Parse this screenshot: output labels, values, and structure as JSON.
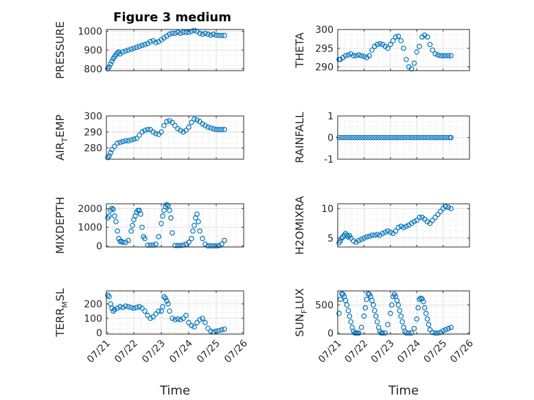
{
  "figure": {
    "title": "Figure 3 medium"
  },
  "colors": {
    "marker": "#0072BD",
    "axis": "#262626",
    "grid": "#c9c9c9"
  },
  "x_tick_labels": [
    "07/21",
    "07/22",
    "07/23",
    "07/24",
    "07/25",
    "07/26"
  ],
  "x_label": "Time",
  "chart_data": [
    {
      "type": "scatter",
      "ylabel": "PRESSURE",
      "yticks": [
        800,
        900,
        1000
      ],
      "ylim": [
        790,
        1010
      ],
      "xlim_days": [
        0,
        5
      ],
      "x_label": "",
      "x_tick_labels_visible": false,
      "grid": true,
      "points_x": [
        0.05,
        0.1,
        0.15,
        0.2,
        0.25,
        0.3,
        0.35,
        0.4,
        0.45,
        0.5,
        0.6,
        0.7,
        0.8,
        0.9,
        1.0,
        1.1,
        1.2,
        1.3,
        1.4,
        1.5,
        1.6,
        1.7,
        1.8,
        1.9,
        2.0,
        2.1,
        2.2,
        2.3,
        2.4,
        2.5,
        2.6,
        2.7,
        2.8,
        2.9,
        3.0,
        3.1,
        3.2,
        3.3,
        3.4,
        3.5,
        3.6,
        3.7,
        3.8,
        3.9,
        4.0,
        4.1,
        4.2,
        4.3
      ],
      "points_y": [
        800,
        810,
        825,
        840,
        855,
        865,
        875,
        885,
        890,
        880,
        890,
        895,
        900,
        905,
        910,
        915,
        920,
        925,
        930,
        935,
        945,
        950,
        940,
        945,
        955,
        965,
        975,
        985,
        990,
        990,
        995,
        990,
        995,
        995,
        995,
        1000,
        1005,
        1000,
        990,
        985,
        990,
        985,
        980,
        985,
        980,
        978,
        978,
        978
      ]
    },
    {
      "type": "scatter",
      "ylabel": "THETA",
      "yticks": [
        290,
        295,
        300
      ],
      "ylim": [
        289,
        300
      ],
      "xlim_days": [
        0,
        5
      ],
      "x_tick_labels_visible": false,
      "grid": true,
      "points_x": [
        0.05,
        0.1,
        0.2,
        0.3,
        0.4,
        0.5,
        0.6,
        0.7,
        0.8,
        0.9,
        1.0,
        1.1,
        1.2,
        1.3,
        1.4,
        1.5,
        1.6,
        1.7,
        1.8,
        1.9,
        2.0,
        2.1,
        2.2,
        2.3,
        2.4,
        2.5,
        2.6,
        2.7,
        2.8,
        2.9,
        3.0,
        3.1,
        3.2,
        3.3,
        3.4,
        3.5,
        3.6,
        3.7,
        3.8,
        3.9,
        4.0,
        4.1,
        4.2,
        4.3
      ],
      "points_y": [
        292,
        292,
        292.5,
        293,
        293.2,
        293.5,
        293,
        293,
        293.2,
        293,
        292.8,
        292.5,
        293,
        294.5,
        295.5,
        296,
        296.2,
        296,
        295.5,
        295,
        296,
        297,
        298,
        298.2,
        297,
        295,
        292,
        290,
        289.5,
        291,
        294,
        295.5,
        298,
        298.5,
        298,
        296,
        294.5,
        293.5,
        293.2,
        293,
        293,
        293,
        293,
        293
      ]
    },
    {
      "type": "scatter",
      "ylabel": "AIR_TEMP",
      "ylabel_parts": [
        "AIR",
        "T",
        "EMP"
      ],
      "yticks": [
        280,
        290,
        300
      ],
      "ylim": [
        273,
        300
      ],
      "xlim_days": [
        0,
        5
      ],
      "x_tick_labels_visible": false,
      "grid": true,
      "points_x": [
        0.05,
        0.1,
        0.15,
        0.2,
        0.3,
        0.4,
        0.5,
        0.6,
        0.7,
        0.8,
        0.9,
        1.0,
        1.1,
        1.2,
        1.3,
        1.4,
        1.5,
        1.6,
        1.7,
        1.8,
        1.9,
        2.0,
        2.1,
        2.2,
        2.3,
        2.4,
        2.5,
        2.6,
        2.7,
        2.8,
        2.9,
        3.0,
        3.1,
        3.2,
        3.3,
        3.4,
        3.5,
        3.6,
        3.7,
        3.8,
        3.9,
        4.0,
        4.1,
        4.2,
        4.3
      ],
      "points_y": [
        274,
        275,
        277,
        279,
        281,
        283,
        283.5,
        284,
        284.5,
        284.5,
        285,
        285.5,
        286,
        288,
        290,
        291,
        291.5,
        291.5,
        290,
        289,
        288.5,
        290,
        294,
        296.5,
        297,
        296,
        294,
        292,
        291,
        290,
        291,
        293,
        296,
        298,
        297.5,
        296.5,
        295,
        294,
        293,
        292.5,
        292,
        291.5,
        291.5,
        291.5,
        291.5
      ]
    },
    {
      "type": "scatter",
      "ylabel": "RAINFALL",
      "yticks": [
        -1,
        0,
        1
      ],
      "ylim": [
        -1,
        1
      ],
      "xlim_days": [
        0,
        5
      ],
      "x_tick_labels_visible": false,
      "grid": true,
      "points_x": [
        0.05,
        0.15,
        0.25,
        0.35,
        0.45,
        0.55,
        0.65,
        0.75,
        0.85,
        0.95,
        1.05,
        1.15,
        1.25,
        1.35,
        1.45,
        1.55,
        1.65,
        1.75,
        1.85,
        1.95,
        2.05,
        2.15,
        2.25,
        2.35,
        2.45,
        2.55,
        2.65,
        2.75,
        2.85,
        2.95,
        3.05,
        3.15,
        3.25,
        3.35,
        3.45,
        3.55,
        3.65,
        3.75,
        3.85,
        3.95,
        4.05,
        4.15,
        4.25,
        4.3
      ],
      "points_y": [
        0,
        0,
        0,
        0,
        0,
        0,
        0,
        0,
        0,
        0,
        0,
        0,
        0,
        0,
        0,
        0,
        0,
        0,
        0,
        0,
        0,
        0,
        0,
        0,
        0,
        0,
        0,
        0,
        0,
        0,
        0,
        0,
        0,
        0,
        0,
        0,
        0,
        0,
        0,
        0,
        0,
        0,
        0,
        0
      ]
    },
    {
      "type": "scatter",
      "ylabel": "MIXDEPTH",
      "yticks": [
        0,
        1000,
        2000
      ],
      "ylim": [
        -50,
        2250
      ],
      "xlim_days": [
        0,
        5
      ],
      "x_tick_labels_visible": false,
      "grid": true,
      "points_x": [
        0.05,
        0.1,
        0.15,
        0.2,
        0.25,
        0.3,
        0.35,
        0.4,
        0.45,
        0.5,
        0.55,
        0.6,
        0.7,
        0.8,
        0.9,
        0.95,
        1.0,
        1.05,
        1.1,
        1.15,
        1.2,
        1.25,
        1.3,
        1.35,
        1.4,
        1.5,
        1.6,
        1.7,
        1.8,
        1.9,
        2.0,
        2.05,
        2.1,
        2.15,
        2.2,
        2.25,
        2.3,
        2.35,
        2.4,
        2.5,
        2.6,
        2.7,
        2.8,
        2.9,
        3.0,
        3.1,
        3.15,
        3.2,
        3.25,
        3.3,
        3.35,
        3.4,
        3.5,
        3.6,
        3.7,
        3.8,
        3.9,
        4.0,
        4.1,
        4.2,
        4.3
      ],
      "points_y": [
        1500,
        1600,
        1900,
        2000,
        1950,
        1600,
        1300,
        800,
        400,
        250,
        250,
        200,
        200,
        300,
        800,
        1100,
        1400,
        1600,
        1800,
        1900,
        1900,
        1700,
        1000,
        500,
        400,
        50,
        50,
        50,
        100,
        500,
        1200,
        1600,
        1900,
        2100,
        2200,
        2150,
        1900,
        1500,
        700,
        30,
        30,
        30,
        50,
        100,
        200,
        400,
        800,
        1100,
        1500,
        1700,
        1300,
        800,
        400,
        100,
        10,
        10,
        10,
        10,
        20,
        100,
        300
      ]
    },
    {
      "type": "scatter",
      "ylabel": "H2OMIXRA",
      "yticks": [
        5,
        10
      ],
      "ylim": [
        3.5,
        10.8
      ],
      "xlim_days": [
        0,
        5
      ],
      "x_tick_labels_visible": false,
      "grid": true,
      "points_x": [
        0.05,
        0.1,
        0.15,
        0.2,
        0.25,
        0.3,
        0.35,
        0.4,
        0.45,
        0.5,
        0.6,
        0.7,
        0.8,
        0.9,
        1.0,
        1.1,
        1.2,
        1.3,
        1.4,
        1.5,
        1.6,
        1.7,
        1.8,
        1.9,
        2.0,
        2.1,
        2.2,
        2.3,
        2.4,
        2.5,
        2.6,
        2.7,
        2.8,
        2.9,
        3.0,
        3.1,
        3.2,
        3.3,
        3.4,
        3.5,
        3.6,
        3.7,
        3.8,
        3.9,
        4.0,
        4.1,
        4.2,
        4.3
      ],
      "points_y": [
        4.2,
        4.5,
        5.0,
        5.2,
        5.5,
        5.8,
        5.5,
        5.2,
        5.4,
        5.0,
        4.5,
        4.3,
        4.6,
        4.8,
        5.0,
        5.2,
        5.3,
        5.5,
        5.5,
        5.6,
        5.5,
        5.8,
        6.0,
        6.2,
        6.0,
        5.8,
        6.2,
        6.8,
        7.0,
        6.8,
        7.0,
        7.2,
        7.5,
        7.8,
        8.0,
        8.5,
        8.5,
        8.2,
        7.8,
        7.5,
        8.0,
        8.5,
        9.0,
        9.5,
        10.0,
        10.3,
        10.2,
        10.0
      ]
    },
    {
      "type": "scatter",
      "ylabel": "TERR_MSL",
      "ylabel_parts": [
        "TERR",
        "M",
        "SL"
      ],
      "yticks": [
        0,
        100,
        200
      ],
      "ylim": [
        -10,
        290
      ],
      "xlim_days": [
        0,
        5
      ],
      "x_tick_labels_visible": true,
      "x_label": "Time",
      "grid": true,
      "points_x": [
        0.05,
        0.1,
        0.15,
        0.2,
        0.25,
        0.3,
        0.4,
        0.5,
        0.6,
        0.7,
        0.8,
        0.9,
        1.0,
        1.1,
        1.2,
        1.3,
        1.4,
        1.5,
        1.6,
        1.7,
        1.8,
        1.9,
        2.0,
        2.05,
        2.1,
        2.15,
        2.2,
        2.25,
        2.3,
        2.4,
        2.5,
        2.6,
        2.7,
        2.8,
        2.9,
        3.0,
        3.1,
        3.2,
        3.3,
        3.4,
        3.5,
        3.6,
        3.7,
        3.8,
        3.9,
        4.0,
        4.1,
        4.2,
        4.3
      ],
      "points_y": [
        260,
        250,
        200,
        170,
        150,
        160,
        170,
        180,
        175,
        185,
        180,
        175,
        170,
        175,
        180,
        170,
        150,
        120,
        100,
        110,
        130,
        150,
        150,
        180,
        250,
        240,
        220,
        200,
        150,
        100,
        90,
        95,
        90,
        100,
        120,
        70,
        50,
        40,
        70,
        90,
        100,
        70,
        30,
        10,
        5,
        10,
        15,
        20,
        25
      ]
    },
    {
      "type": "scatter",
      "ylabel": "SUN_FLUX",
      "ylabel_parts": [
        "SUN",
        "F",
        "LUX"
      ],
      "yticks": [
        0,
        500
      ],
      "ylim": [
        -20,
        750
      ],
      "xlim_days": [
        0,
        5
      ],
      "x_tick_labels_visible": true,
      "x_label": "Time",
      "grid": true,
      "points_x": [
        0.05,
        0.1,
        0.15,
        0.2,
        0.25,
        0.3,
        0.35,
        0.4,
        0.45,
        0.5,
        0.55,
        0.6,
        0.65,
        0.7,
        0.75,
        0.8,
        0.9,
        1.0,
        1.05,
        1.1,
        1.15,
        1.2,
        1.25,
        1.3,
        1.35,
        1.4,
        1.45,
        1.5,
        1.55,
        1.6,
        1.65,
        1.7,
        1.8,
        1.9,
        2.0,
        2.05,
        2.1,
        2.15,
        2.2,
        2.25,
        2.3,
        2.35,
        2.4,
        2.45,
        2.5,
        2.55,
        2.6,
        2.7,
        2.8,
        2.9,
        3.0,
        3.05,
        3.1,
        3.15,
        3.2,
        3.25,
        3.3,
        3.35,
        3.4,
        3.45,
        3.5,
        3.6,
        3.7,
        3.8,
        3.9,
        4.0,
        4.1,
        4.2,
        4.3
      ],
      "points_y": [
        350,
        600,
        700,
        690,
        650,
        580,
        500,
        400,
        300,
        200,
        100,
        30,
        0,
        0,
        0,
        0,
        100,
        300,
        450,
        600,
        700,
        690,
        650,
        580,
        500,
        400,
        300,
        200,
        100,
        30,
        0,
        0,
        0,
        150,
        350,
        500,
        650,
        690,
        650,
        580,
        500,
        400,
        300,
        200,
        100,
        30,
        0,
        0,
        0,
        80,
        250,
        450,
        600,
        620,
        610,
        560,
        450,
        350,
        250,
        150,
        60,
        10,
        0,
        0,
        10,
        40,
        60,
        80,
        100
      ]
    }
  ]
}
